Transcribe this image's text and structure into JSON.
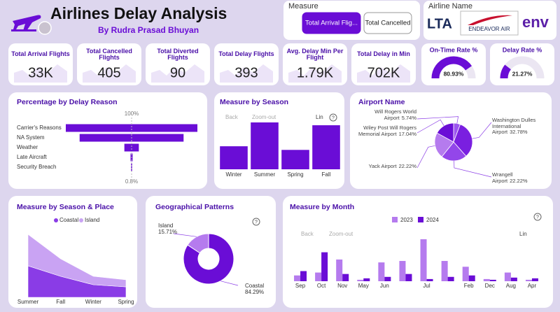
{
  "header": {
    "title": "Airlines Delay Analysis",
    "subtitle": "By Rudra Prasad Bhuyan"
  },
  "measure_slicer": {
    "title": "Measure",
    "options": [
      "Total Arrival Flig...",
      "Total Cancelled"
    ],
    "selected": 0
  },
  "airline_slicer": {
    "title": "Airline Name",
    "options": [
      "LTA",
      "ENDEAVOR AIR",
      "env"
    ]
  },
  "toolbar": {
    "back": "Back",
    "zoom": "Zoom-out",
    "scale": "Lin",
    "help": "?"
  },
  "kpis": [
    {
      "label": "Total Arrival Flights",
      "value": "33K"
    },
    {
      "label": "Total Cancelled Flights",
      "value": "405"
    },
    {
      "label": "Total Diverted Flights",
      "value": "90"
    },
    {
      "label": "Total Delay Flights",
      "value": "393"
    },
    {
      "label": "Avg. Delay Min Per Flight",
      "value": "1.79K"
    },
    {
      "label": "Total Delay in Min",
      "value": "702K"
    }
  ],
  "gauges": [
    {
      "title": "On-Time Rate %",
      "value": 80.93,
      "value_label": "80.93%",
      "ylim": [
        0,
        100
      ],
      "color": "#6a0dd6"
    },
    {
      "title": "Delay Rate %",
      "value": 21.27,
      "value_label": "21.27%",
      "ylim": [
        0,
        100
      ],
      "color": "#6a0dd6"
    }
  ],
  "chart_data": [
    {
      "type": "funnel",
      "title": "Percentage by Delay Reason",
      "categories": [
        "Carrier's Reasons",
        "NA System",
        "Weather",
        "Late Aircraft",
        "Security Breach"
      ],
      "values": [
        100,
        79,
        11,
        1.6,
        0.8
      ],
      "value_labels": [
        "100%",
        null,
        null,
        null,
        "0.8%"
      ],
      "color": "#6a0dd6"
    },
    {
      "type": "bar",
      "title": "Measure by Season",
      "categories": [
        "Winter",
        "Summer",
        "Spring",
        "Fall"
      ],
      "values": [
        5700,
        11600,
        4800,
        10900
      ],
      "color": "#6a0dd6"
    },
    {
      "type": "pie",
      "title": "Airport Name",
      "categories": [
        "Will Rogers World Airport",
        "Washington Dulles International Airport",
        "Wrangell Airport",
        "Yack Airport",
        "Wiley Post Will Rogers Memorial Airport"
      ],
      "values": [
        5.74,
        32.78,
        22.22,
        22.22,
        17.04
      ],
      "value_labels": [
        "5.74%",
        "32.78%",
        "22.22%",
        "22.22%",
        "17.04%"
      ],
      "colors": [
        "#9c55ee",
        "#7a1fe0",
        "#9346ea",
        "#b57bee",
        "#6a0dd6"
      ]
    },
    {
      "type": "area",
      "title": "Measure by Season & Place",
      "categories": [
        "Summer",
        "Fall",
        "Winter",
        "Spring"
      ],
      "series": [
        {
          "name": "Coastal",
          "color": "#8a3ce6",
          "values": [
            45,
            30,
            18,
            15
          ]
        },
        {
          "name": "Island",
          "color": "#c9a3f3",
          "values": [
            45,
            25,
            12,
            10
          ]
        }
      ]
    },
    {
      "type": "donut",
      "title": "Geographical Patterns",
      "categories": [
        "Island",
        "Coastal"
      ],
      "values": [
        15.71,
        84.29
      ],
      "value_labels": [
        "15.71%",
        "84.29%"
      ],
      "colors": [
        "#b57bee",
        "#6a0dd6"
      ]
    },
    {
      "type": "grouped_bar",
      "title": "Measure by Month",
      "categories": [
        "Sep",
        "Oct",
        "Nov",
        "May",
        "Jun",
        null,
        "Jul",
        null,
        "Feb",
        "Dec",
        "Aug",
        "Apr"
      ],
      "series": [
        {
          "name": "2023",
          "color": "#b57bee",
          "values": [
            8,
            12,
            30,
            2,
            26,
            28,
            58,
            28,
            20,
            3,
            12,
            2
          ]
        },
        {
          "name": "2024",
          "color": "#6a0dd6",
          "values": [
            14,
            40,
            10,
            4,
            6,
            10,
            3,
            6,
            8,
            2,
            5,
            4
          ]
        }
      ]
    }
  ]
}
